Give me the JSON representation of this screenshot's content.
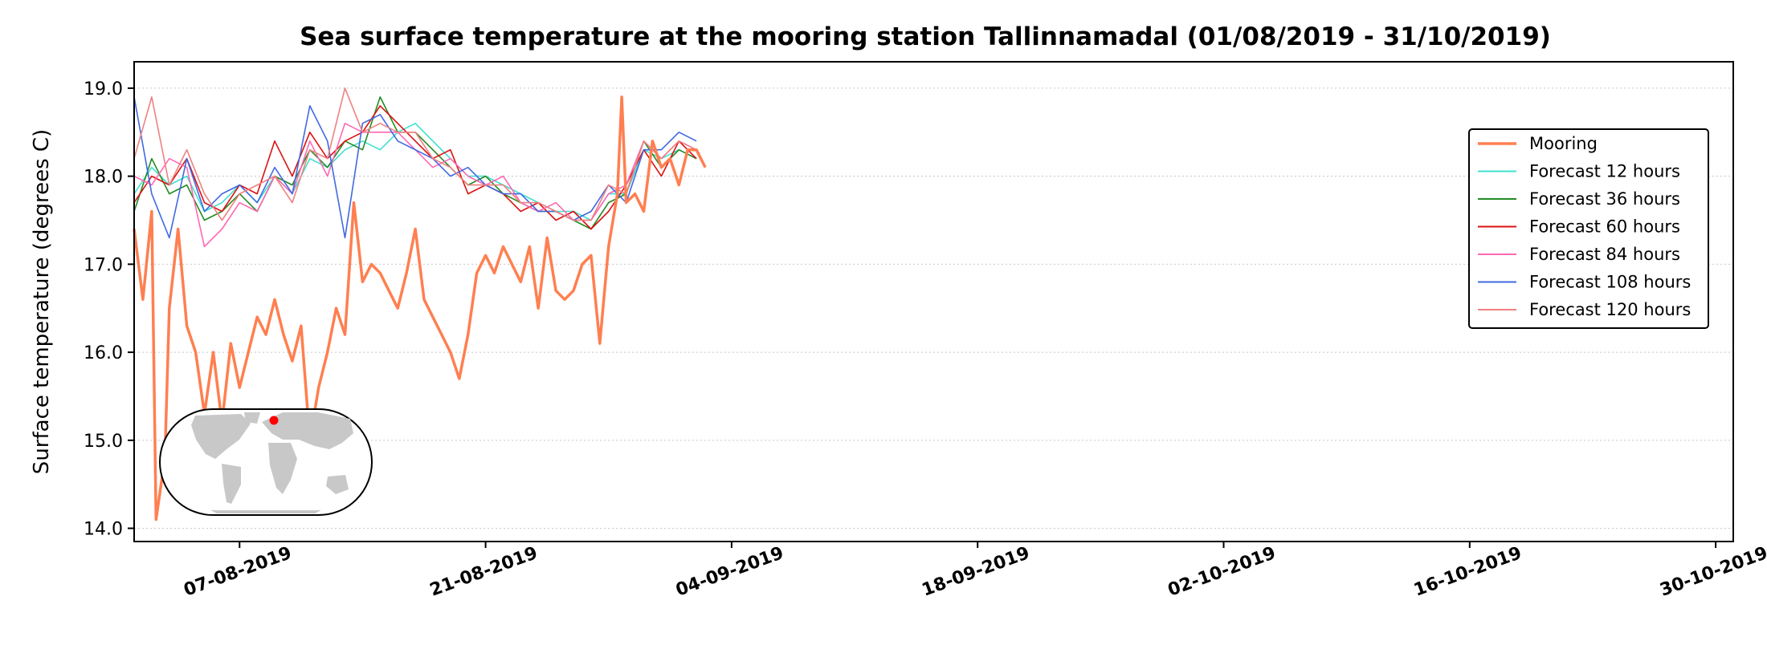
{
  "chart_data": {
    "type": "line",
    "title": "Sea surface temperature at the mooring station Tallinnamadal (01/08/2019 - 31/10/2019)",
    "xlabel": "",
    "ylabel": "Surface temperature (degrees C)",
    "xlim": [
      "2019-08-01",
      "2019-10-31"
    ],
    "ylim": [
      13.85,
      19.3
    ],
    "x_ticks": [
      "07-08-2019",
      "21-08-2019",
      "04-09-2019",
      "18-09-2019",
      "02-10-2019",
      "16-10-2019",
      "30-10-2019"
    ],
    "y_ticks": [
      "14.0",
      "15.0",
      "16.0",
      "17.0",
      "18.0",
      "19.0"
    ],
    "grid": "horizontal dotted",
    "legend_position": "right",
    "inset_map": "world map with red marker at station location",
    "series": [
      {
        "name": "Mooring",
        "color": "#ff7f50",
        "points": [
          [
            "2019-08-01",
            17.4
          ],
          [
            "2019-08-01T12:00",
            16.6
          ],
          [
            "2019-08-02",
            17.6
          ],
          [
            "2019-08-02T06:00",
            14.1
          ],
          [
            "2019-08-02T18:00",
            14.8
          ],
          [
            "2019-08-03",
            16.5
          ],
          [
            "2019-08-03T12:00",
            17.4
          ],
          [
            "2019-08-04",
            16.3
          ],
          [
            "2019-08-04T12:00",
            16.0
          ],
          [
            "2019-08-05",
            15.3
          ],
          [
            "2019-08-05T12:00",
            16.0
          ],
          [
            "2019-08-06",
            15.2
          ],
          [
            "2019-08-06T12:00",
            16.1
          ],
          [
            "2019-08-07",
            15.6
          ],
          [
            "2019-08-07T12:00",
            16.0
          ],
          [
            "2019-08-08",
            16.4
          ],
          [
            "2019-08-08T12:00",
            16.2
          ],
          [
            "2019-08-09",
            16.6
          ],
          [
            "2019-08-09T12:00",
            16.2
          ],
          [
            "2019-08-10",
            15.9
          ],
          [
            "2019-08-10T12:00",
            16.3
          ],
          [
            "2019-08-11",
            15.0
          ],
          [
            "2019-08-11T12:00",
            15.6
          ],
          [
            "2019-08-12",
            16.0
          ],
          [
            "2019-08-12T12:00",
            16.5
          ],
          [
            "2019-08-13",
            16.2
          ],
          [
            "2019-08-13T12:00",
            17.7
          ],
          [
            "2019-08-14",
            16.8
          ],
          [
            "2019-08-14T12:00",
            17.0
          ],
          [
            "2019-08-15",
            16.9
          ],
          [
            "2019-08-15T12:00",
            16.7
          ],
          [
            "2019-08-16",
            16.5
          ],
          [
            "2019-08-16T12:00",
            16.9
          ],
          [
            "2019-08-17",
            17.4
          ],
          [
            "2019-08-17T12:00",
            16.6
          ],
          [
            "2019-08-18",
            16.4
          ],
          [
            "2019-08-18T12:00",
            16.2
          ],
          [
            "2019-08-19",
            16.0
          ],
          [
            "2019-08-19T12:00",
            15.7
          ],
          [
            "2019-08-20",
            16.2
          ],
          [
            "2019-08-20T12:00",
            16.9
          ],
          [
            "2019-08-21",
            17.1
          ],
          [
            "2019-08-21T12:00",
            16.9
          ],
          [
            "2019-08-22",
            17.2
          ],
          [
            "2019-08-22T12:00",
            17.0
          ],
          [
            "2019-08-23",
            16.8
          ],
          [
            "2019-08-23T12:00",
            17.2
          ],
          [
            "2019-08-24",
            16.5
          ],
          [
            "2019-08-24T12:00",
            17.3
          ],
          [
            "2019-08-25",
            16.7
          ],
          [
            "2019-08-25T12:00",
            16.6
          ],
          [
            "2019-08-26",
            16.7
          ],
          [
            "2019-08-26T12:00",
            17.0
          ],
          [
            "2019-08-27",
            17.1
          ],
          [
            "2019-08-27T12:00",
            16.1
          ],
          [
            "2019-08-28",
            17.2
          ],
          [
            "2019-08-28T12:00",
            17.8
          ],
          [
            "2019-08-28T18:00",
            18.9
          ],
          [
            "2019-08-29",
            17.7
          ],
          [
            "2019-08-29T12:00",
            17.8
          ],
          [
            "2019-08-30",
            17.6
          ],
          [
            "2019-08-30T12:00",
            18.4
          ],
          [
            "2019-08-31",
            18.1
          ],
          [
            "2019-08-31T12:00",
            18.2
          ],
          [
            "2019-09-01",
            17.9
          ],
          [
            "2019-09-01T12:00",
            18.3
          ],
          [
            "2019-09-02",
            18.3
          ],
          [
            "2019-09-02T12:00",
            18.1
          ]
        ]
      },
      {
        "name": "Forecast 12 hours",
        "color": "#40e0d0",
        "points": [
          [
            "2019-08-01",
            17.8
          ],
          [
            "2019-08-02",
            18.1
          ],
          [
            "2019-08-03",
            17.9
          ],
          [
            "2019-08-04",
            18.0
          ],
          [
            "2019-08-05",
            17.6
          ],
          [
            "2019-08-06",
            17.7
          ],
          [
            "2019-08-07",
            17.9
          ],
          [
            "2019-08-08",
            17.7
          ],
          [
            "2019-08-09",
            18.0
          ],
          [
            "2019-08-10",
            17.8
          ],
          [
            "2019-08-11",
            18.2
          ],
          [
            "2019-08-12",
            18.1
          ],
          [
            "2019-08-13",
            18.3
          ],
          [
            "2019-08-14",
            18.4
          ],
          [
            "2019-08-15",
            18.3
          ],
          [
            "2019-08-16",
            18.5
          ],
          [
            "2019-08-17",
            18.6
          ],
          [
            "2019-08-18",
            18.4
          ],
          [
            "2019-08-19",
            18.2
          ],
          [
            "2019-08-20",
            18.0
          ],
          [
            "2019-08-21",
            18.0
          ],
          [
            "2019-08-22",
            17.9
          ],
          [
            "2019-08-23",
            17.8
          ],
          [
            "2019-08-24",
            17.7
          ],
          [
            "2019-08-25",
            17.6
          ],
          [
            "2019-08-26",
            17.6
          ],
          [
            "2019-08-27",
            17.5
          ],
          [
            "2019-08-28",
            17.8
          ],
          [
            "2019-08-29",
            17.8
          ],
          [
            "2019-08-30",
            18.3
          ],
          [
            "2019-08-31",
            18.2
          ],
          [
            "2019-09-01",
            18.3
          ],
          [
            "2019-09-02",
            18.2
          ]
        ]
      },
      {
        "name": "Forecast 36 hours",
        "color": "#228b22",
        "points": [
          [
            "2019-08-01",
            17.6
          ],
          [
            "2019-08-02",
            18.2
          ],
          [
            "2019-08-03",
            17.8
          ],
          [
            "2019-08-04",
            17.9
          ],
          [
            "2019-08-05",
            17.5
          ],
          [
            "2019-08-06",
            17.6
          ],
          [
            "2019-08-07",
            17.8
          ],
          [
            "2019-08-08",
            17.6
          ],
          [
            "2019-08-09",
            18.0
          ],
          [
            "2019-08-10",
            17.9
          ],
          [
            "2019-08-11",
            18.3
          ],
          [
            "2019-08-12",
            18.1
          ],
          [
            "2019-08-13",
            18.4
          ],
          [
            "2019-08-14",
            18.3
          ],
          [
            "2019-08-15",
            18.9
          ],
          [
            "2019-08-16",
            18.5
          ],
          [
            "2019-08-17",
            18.5
          ],
          [
            "2019-08-18",
            18.3
          ],
          [
            "2019-08-19",
            18.1
          ],
          [
            "2019-08-20",
            17.9
          ],
          [
            "2019-08-21",
            18.0
          ],
          [
            "2019-08-22",
            17.8
          ],
          [
            "2019-08-23",
            17.7
          ],
          [
            "2019-08-24",
            17.6
          ],
          [
            "2019-08-25",
            17.6
          ],
          [
            "2019-08-26",
            17.5
          ],
          [
            "2019-08-27",
            17.4
          ],
          [
            "2019-08-28",
            17.7
          ],
          [
            "2019-08-29",
            17.8
          ],
          [
            "2019-08-30",
            18.4
          ],
          [
            "2019-08-31",
            18.1
          ],
          [
            "2019-09-01",
            18.3
          ],
          [
            "2019-09-02",
            18.2
          ]
        ]
      },
      {
        "name": "Forecast 60 hours",
        "color": "#dd1111",
        "points": [
          [
            "2019-08-01",
            17.7
          ],
          [
            "2019-08-02",
            18.0
          ],
          [
            "2019-08-03",
            17.9
          ],
          [
            "2019-08-04",
            18.2
          ],
          [
            "2019-08-05",
            17.7
          ],
          [
            "2019-08-06",
            17.6
          ],
          [
            "2019-08-07",
            17.9
          ],
          [
            "2019-08-08",
            17.8
          ],
          [
            "2019-08-09",
            18.4
          ],
          [
            "2019-08-10",
            18.0
          ],
          [
            "2019-08-11",
            18.5
          ],
          [
            "2019-08-12",
            18.2
          ],
          [
            "2019-08-13",
            18.4
          ],
          [
            "2019-08-14",
            18.5
          ],
          [
            "2019-08-15",
            18.8
          ],
          [
            "2019-08-16",
            18.6
          ],
          [
            "2019-08-17",
            18.4
          ],
          [
            "2019-08-18",
            18.2
          ],
          [
            "2019-08-19",
            18.3
          ],
          [
            "2019-08-20",
            17.8
          ],
          [
            "2019-08-21",
            17.9
          ],
          [
            "2019-08-22",
            17.8
          ],
          [
            "2019-08-23",
            17.6
          ],
          [
            "2019-08-24",
            17.7
          ],
          [
            "2019-08-25",
            17.5
          ],
          [
            "2019-08-26",
            17.6
          ],
          [
            "2019-08-27",
            17.4
          ],
          [
            "2019-08-28",
            17.6
          ],
          [
            "2019-08-29",
            17.9
          ],
          [
            "2019-08-30",
            18.3
          ],
          [
            "2019-08-31",
            18.0
          ],
          [
            "2019-09-01",
            18.4
          ],
          [
            "2019-09-02",
            18.2
          ]
        ]
      },
      {
        "name": "Forecast 84 hours",
        "color": "#ff69b4",
        "points": [
          [
            "2019-08-01",
            18.0
          ],
          [
            "2019-08-02",
            17.9
          ],
          [
            "2019-08-03",
            18.2
          ],
          [
            "2019-08-04",
            18.1
          ],
          [
            "2019-08-05",
            17.2
          ],
          [
            "2019-08-06",
            17.4
          ],
          [
            "2019-08-07",
            17.7
          ],
          [
            "2019-08-08",
            17.6
          ],
          [
            "2019-08-09",
            18.0
          ],
          [
            "2019-08-10",
            17.8
          ],
          [
            "2019-08-11",
            18.4
          ],
          [
            "2019-08-12",
            18.0
          ],
          [
            "2019-08-13",
            18.6
          ],
          [
            "2019-08-14",
            18.5
          ],
          [
            "2019-08-15",
            18.5
          ],
          [
            "2019-08-16",
            18.5
          ],
          [
            "2019-08-17",
            18.3
          ],
          [
            "2019-08-18",
            18.1
          ],
          [
            "2019-08-19",
            18.2
          ],
          [
            "2019-08-20",
            18.0
          ],
          [
            "2019-08-21",
            17.9
          ],
          [
            "2019-08-22",
            18.0
          ],
          [
            "2019-08-23",
            17.7
          ],
          [
            "2019-08-24",
            17.6
          ],
          [
            "2019-08-25",
            17.7
          ],
          [
            "2019-08-26",
            17.5
          ],
          [
            "2019-08-27",
            17.5
          ],
          [
            "2019-08-28",
            17.8
          ],
          [
            "2019-08-29",
            17.9
          ],
          [
            "2019-08-30",
            18.4
          ],
          [
            "2019-08-31",
            18.2
          ],
          [
            "2019-09-01",
            18.4
          ],
          [
            "2019-09-02",
            18.3
          ]
        ]
      },
      {
        "name": "Forecast 108 hours",
        "color": "#4169e1",
        "points": [
          [
            "2019-08-01",
            18.9
          ],
          [
            "2019-08-02",
            17.8
          ],
          [
            "2019-08-03",
            17.3
          ],
          [
            "2019-08-04",
            18.2
          ],
          [
            "2019-08-05",
            17.6
          ],
          [
            "2019-08-06",
            17.8
          ],
          [
            "2019-08-07",
            17.9
          ],
          [
            "2019-08-08",
            17.7
          ],
          [
            "2019-08-09",
            18.1
          ],
          [
            "2019-08-10",
            17.8
          ],
          [
            "2019-08-11",
            18.8
          ],
          [
            "2019-08-12",
            18.4
          ],
          [
            "2019-08-13",
            17.3
          ],
          [
            "2019-08-14",
            18.6
          ],
          [
            "2019-08-15",
            18.7
          ],
          [
            "2019-08-16",
            18.4
          ],
          [
            "2019-08-17",
            18.3
          ],
          [
            "2019-08-18",
            18.2
          ],
          [
            "2019-08-19",
            18.0
          ],
          [
            "2019-08-20",
            18.1
          ],
          [
            "2019-08-21",
            17.9
          ],
          [
            "2019-08-22",
            17.8
          ],
          [
            "2019-08-23",
            17.8
          ],
          [
            "2019-08-24",
            17.6
          ],
          [
            "2019-08-25",
            17.6
          ],
          [
            "2019-08-26",
            17.5
          ],
          [
            "2019-08-27",
            17.6
          ],
          [
            "2019-08-28",
            17.9
          ],
          [
            "2019-08-29",
            17.7
          ],
          [
            "2019-08-30",
            18.3
          ],
          [
            "2019-08-31",
            18.3
          ],
          [
            "2019-09-01",
            18.5
          ],
          [
            "2019-09-02",
            18.4
          ]
        ]
      },
      {
        "name": "Forecast 120 hours",
        "color": "#f08080",
        "points": [
          [
            "2019-08-01",
            18.2
          ],
          [
            "2019-08-02",
            18.9
          ],
          [
            "2019-08-03",
            17.9
          ],
          [
            "2019-08-04",
            18.3
          ],
          [
            "2019-08-05",
            17.8
          ],
          [
            "2019-08-06",
            17.5
          ],
          [
            "2019-08-07",
            17.8
          ],
          [
            "2019-08-08",
            17.9
          ],
          [
            "2019-08-09",
            18.0
          ],
          [
            "2019-08-10",
            17.7
          ],
          [
            "2019-08-11",
            18.3
          ],
          [
            "2019-08-12",
            18.2
          ],
          [
            "2019-08-13",
            19.0
          ],
          [
            "2019-08-14",
            18.5
          ],
          [
            "2019-08-15",
            18.6
          ],
          [
            "2019-08-16",
            18.5
          ],
          [
            "2019-08-17",
            18.5
          ],
          [
            "2019-08-18",
            18.2
          ],
          [
            "2019-08-19",
            18.1
          ],
          [
            "2019-08-20",
            17.9
          ],
          [
            "2019-08-21",
            17.9
          ],
          [
            "2019-08-22",
            17.9
          ],
          [
            "2019-08-23",
            17.7
          ],
          [
            "2019-08-24",
            17.7
          ],
          [
            "2019-08-25",
            17.6
          ],
          [
            "2019-08-26",
            17.5
          ],
          [
            "2019-08-27",
            17.5
          ],
          [
            "2019-08-28",
            17.9
          ],
          [
            "2019-08-29",
            17.8
          ],
          [
            "2019-08-30",
            18.4
          ],
          [
            "2019-08-31",
            18.2
          ],
          [
            "2019-09-01",
            18.4
          ],
          [
            "2019-09-02",
            18.3
          ]
        ]
      }
    ]
  }
}
